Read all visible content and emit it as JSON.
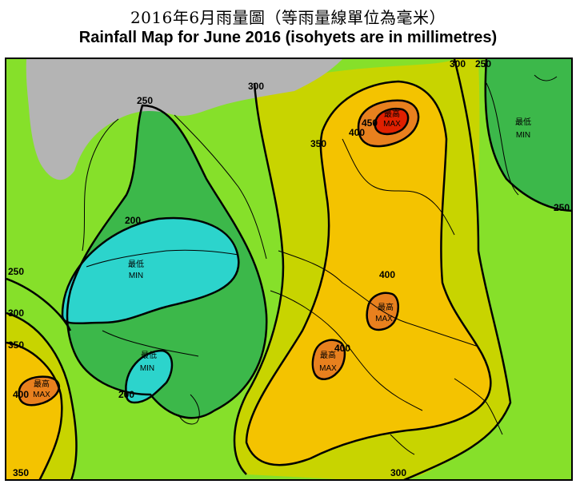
{
  "title_zh": "2016年6月雨量圖（等雨量線單位為毫米）",
  "title_en": "Rainfall Map for June 2016 (isohyets are in millimetres)",
  "colors": {
    "band_200_250": "#3cb84a",
    "band_250_300": "#86e02a",
    "band_300_350": "#c8d400",
    "band_350_400": "#f4c300",
    "band_400_450": "#e8801e",
    "band_min": "#2cd4cc",
    "band_max": "#e02000",
    "land_outside": "#b4b4b4"
  },
  "isohyets": {
    "l_250_top": "250",
    "l_300_top": "300",
    "l_300_topright": "300",
    "l_250_topright": "250",
    "l_350_north": "350",
    "l_400_north": "400",
    "l_450_north": "450",
    "l_200_west": "200",
    "l_250_left": "250",
    "l_300_left": "300",
    "l_350_left": "350",
    "l_400_sw": "400",
    "l_200_south": "200",
    "l_400_east": "400",
    "l_400_south": "400",
    "l_250_right": "250",
    "l_350_bottom": "350",
    "l_300_bottom": "300"
  },
  "markers": {
    "max_zh": "最高",
    "max_en": "MAX",
    "min_zh": "最低",
    "min_en": "MIN"
  }
}
